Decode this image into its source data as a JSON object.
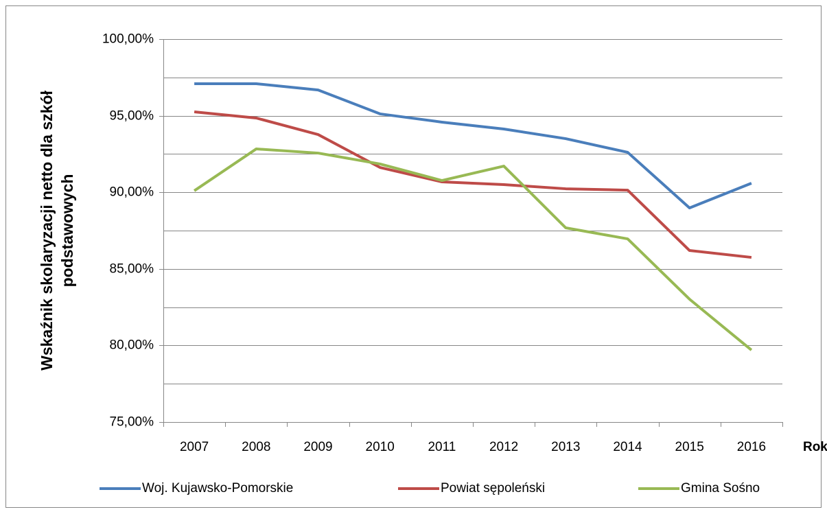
{
  "chart_data": {
    "type": "line",
    "ylabel": [
      "Wskaźnik skolaryzacji netto dla szkół",
      "podstawowych"
    ],
    "xlabel": "Rok",
    "categories": [
      "2007",
      "2008",
      "2009",
      "2010",
      "2011",
      "2012",
      "2013",
      "2014",
      "2015",
      "2016"
    ],
    "series": [
      {
        "name": "Woj. Kujawsko-Pomorskie",
        "color": "#4a7ebb",
        "values": [
          97.09,
          97.09,
          96.68,
          95.12,
          94.58,
          94.13,
          93.5,
          92.61,
          88.98,
          90.59
        ]
      },
      {
        "name": "Powiat sępoleński",
        "color": "#be4b48",
        "values": [
          95.25,
          94.85,
          93.77,
          91.62,
          90.68,
          90.5,
          90.23,
          90.14,
          86.2,
          85.75
        ]
      },
      {
        "name": "Gmina Sośno",
        "color": "#98b954",
        "values": [
          90.1,
          92.83,
          92.56,
          91.85,
          90.77,
          91.71,
          87.68,
          86.96,
          83.02,
          79.7
        ]
      }
    ],
    "ylim": [
      75,
      100
    ],
    "yticks": [
      {
        "value": 75,
        "label": "75,00%"
      },
      {
        "value": 80,
        "label": "80,00%"
      },
      {
        "value": 85,
        "label": "85,00%"
      },
      {
        "value": 90,
        "label": "90,00%"
      },
      {
        "value": 95,
        "label": "95,00%"
      },
      {
        "value": 100,
        "label": "100,00%"
      }
    ],
    "yminor_ticks": [
      77.5,
      82.5,
      87.5,
      92.5,
      97.5
    ],
    "grid": true,
    "legend": "bottom"
  }
}
